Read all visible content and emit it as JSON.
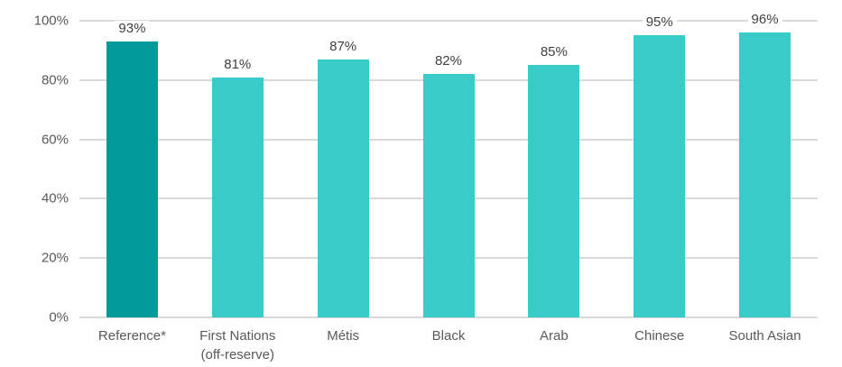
{
  "colors": {
    "reference_bar": "#009A98",
    "group_bar": "#38CBC8",
    "gridline": "#D9D9D9",
    "axis_label_text": "#595959",
    "data_label_text": "#404040",
    "background": "#FFFFFF"
  },
  "chart_data": {
    "type": "bar",
    "categories": [
      "Reference*",
      "First Nations\n(off-reserve)",
      "Métis",
      "Black",
      "Arab",
      "Chinese",
      "South Asian"
    ],
    "values": [
      93,
      81,
      87,
      82,
      85,
      95,
      96
    ],
    "data_labels": [
      "93%",
      "81%",
      "87%",
      "82%",
      "85%",
      "95%",
      "96%"
    ],
    "highlight_index": 0,
    "title": "",
    "xlabel": "",
    "ylabel": "",
    "ylim": [
      0,
      100
    ],
    "yticks": [
      0,
      20,
      40,
      60,
      80,
      100
    ],
    "ytick_labels": [
      "0%",
      "20%",
      "40%",
      "60%",
      "80%",
      "100%"
    ],
    "grid": "horizontal",
    "legend": "none"
  }
}
